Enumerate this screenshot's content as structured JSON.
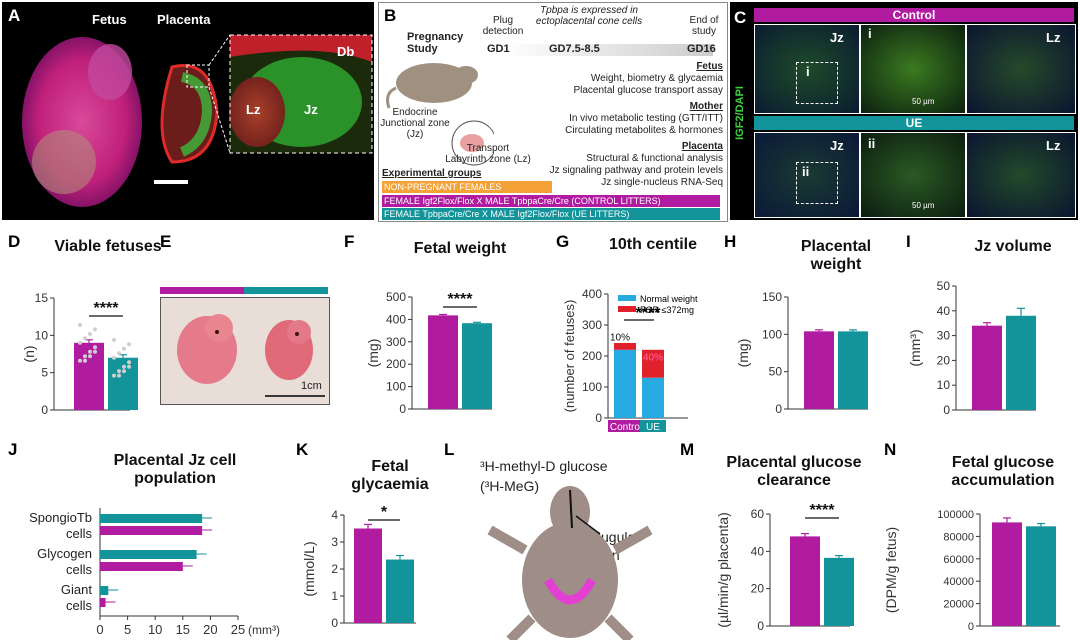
{
  "colors": {
    "magenta": "#b01ba0",
    "teal": "#13939a",
    "orange": "#f4a236",
    "red": "#e0212b",
    "blue": "#27aae1"
  },
  "panelA": {
    "letter": "A",
    "fetus": "Fetus",
    "placenta": "Placenta",
    "db": "Db",
    "lz": "Lz",
    "jz": "Jz"
  },
  "panelB": {
    "letter": "B",
    "study": "Pregnancy Study",
    "plug": "Plug detection",
    "tpbpa": "Tpbpa is expressed in ectoplacental cone cells",
    "end": "End of study",
    "gd1": "GD1",
    "gd75": "GD7.5-8.5",
    "gd16": "GD16",
    "fetus_h": "Fetus",
    "fetus_1": "Weight, biometry & glycaemia",
    "fetus_2": "Placental glucose transport assay",
    "mother_h": "Mother",
    "mother_1": "In vivo metabolic testing (GTT/ITT)",
    "mother_2": "Circulating metabolites & hormones",
    "placenta_h": "Placenta",
    "placenta_1": "Structural & functional analysis",
    "placenta_2": "Jz signaling pathway and protein levels",
    "placenta_3": "Jz  single-nucleus RNA-Seq",
    "endocrine": "Endocrine Junctional zone (Jz)",
    "transport": "Transport Labyrinth zone (Lz)",
    "exp": "Experimental groups",
    "g1": "NON-PREGNANT FEMALES",
    "g2": "FEMALE Igf2Flox/Flox X MALE TpbpaCre/Cre (CONTROL LITTERS)",
    "g3": "FEMALE TpbpaCre/Cre X MALE Igf2Flox/Flox (UE LITTERS)"
  },
  "panelC": {
    "letter": "C",
    "control": "Control",
    "ue": "UE",
    "jz": "Jz",
    "lz": "Lz",
    "i": "i",
    "ii": "ii",
    "scale": "50 µm",
    "ylabel": "IGF2/DAPI"
  },
  "panelD": {
    "letter": "D",
    "title": "Viable fetuses",
    "ylabel": "(n)",
    "sig": "****"
  },
  "panelE": {
    "letter": "E",
    "scale": "1cm"
  },
  "panelF": {
    "letter": "F",
    "title": "Fetal weight",
    "ylabel": "(mg)",
    "sig": "****"
  },
  "panelG": {
    "letter": "G",
    "title": "10th centile",
    "ylabel": "(number of fetuses)",
    "sig": "****",
    "leg1": "Normal weight",
    "leg2": "FGR ≤372mg",
    "p1": "10%",
    "p2": "40%",
    "c1": "Control",
    "c2": "UE"
  },
  "panelH": {
    "letter": "H",
    "title": "Placental weight",
    "ylabel": "(mg)"
  },
  "panelI": {
    "letter": "I",
    "title": "Jz volume",
    "ylabel": "(mm³)"
  },
  "panelJ": {
    "letter": "J",
    "title": "Placental Jz cell population",
    "xunit": "(mm³)",
    "cat1": "SpongioTb cells",
    "cat2": "Glycogen cells",
    "cat3": "Giant cells"
  },
  "panelK": {
    "letter": "K",
    "title": "Fetal glycaemia",
    "ylabel": "(mmol/L)",
    "sig": "*"
  },
  "panelL": {
    "letter": "L",
    "label1": "³H-methyl-D glucose",
    "label2": "(³H-MeG)",
    "vein": "Jugular vein"
  },
  "panelM": {
    "letter": "M",
    "title": "Placental glucose clearance",
    "ylabel": "(µl/min/g placenta)",
    "sig": "****"
  },
  "panelN": {
    "letter": "N",
    "title": "Fetal glucose accumulation",
    "ylabel": "(DPM/g fetus)"
  },
  "chart_data": [
    {
      "id": "D",
      "type": "bar",
      "categories": [
        "Control",
        "UE"
      ],
      "values": [
        9,
        7
      ],
      "errors": [
        0.4,
        0.4
      ],
      "ylim": [
        0,
        15
      ],
      "ticks": [
        0,
        5,
        10,
        15
      ],
      "points": true
    },
    {
      "id": "F",
      "type": "bar",
      "categories": [
        "Control",
        "UE"
      ],
      "values": [
        418,
        383
      ],
      "errors": [
        4,
        4
      ],
      "ylim": [
        0,
        500
      ],
      "ticks": [
        0,
        100,
        200,
        300,
        400,
        500
      ]
    },
    {
      "id": "G",
      "type": "bar",
      "stacked": true,
      "categories": [
        "Control",
        "UE"
      ],
      "series": [
        {
          "name": "Normal weight",
          "values": [
            220,
            130
          ]
        },
        {
          "name": "FGR ≤372mg",
          "values": [
            22,
            90
          ]
        }
      ],
      "ylim": [
        0,
        400
      ],
      "ticks": [
        0,
        100,
        200,
        300,
        400
      ]
    },
    {
      "id": "H",
      "type": "bar",
      "categories": [
        "Control",
        "UE"
      ],
      "values": [
        104,
        104
      ],
      "errors": [
        2,
        2
      ],
      "ylim": [
        0,
        150
      ],
      "ticks": [
        0,
        50,
        100,
        150
      ]
    },
    {
      "id": "I",
      "type": "bar",
      "categories": [
        "Control",
        "UE"
      ],
      "values": [
        34,
        38
      ],
      "errors": [
        1.2,
        3
      ],
      "ylim": [
        0,
        50
      ],
      "ticks": [
        0,
        10,
        20,
        30,
        40,
        50
      ]
    },
    {
      "id": "J",
      "type": "bar",
      "horizontal": true,
      "categories": [
        "SpongioTb cells",
        "Glycogen cells",
        "Giant cells"
      ],
      "series": [
        {
          "name": "UE",
          "values": [
            18.5,
            17.5,
            1.5
          ]
        },
        {
          "name": "Control",
          "values": [
            18.5,
            15,
            1.0
          ]
        }
      ],
      "xlim": [
        0,
        25
      ],
      "ticks": [
        0,
        5,
        10,
        15,
        20,
        25
      ]
    },
    {
      "id": "K",
      "type": "bar",
      "categories": [
        "Control",
        "UE"
      ],
      "values": [
        3.5,
        2.35
      ],
      "errors": [
        0.15,
        0.15
      ],
      "ylim": [
        0,
        4
      ],
      "ticks": [
        0,
        1,
        2,
        3,
        4
      ]
    },
    {
      "id": "M",
      "type": "bar",
      "categories": [
        "Control",
        "UE"
      ],
      "values": [
        48,
        36.5
      ],
      "errors": [
        1.5,
        1.2
      ],
      "ylim": [
        0,
        60
      ],
      "ticks": [
        0,
        20,
        40,
        60
      ]
    },
    {
      "id": "N",
      "type": "bar",
      "categories": [
        "Control",
        "UE"
      ],
      "values": [
        92500,
        89000
      ],
      "errors": [
        4000,
        2500
      ],
      "ylim": [
        0,
        100000
      ],
      "ticks": [
        0,
        20000,
        40000,
        60000,
        80000,
        100000
      ]
    }
  ]
}
